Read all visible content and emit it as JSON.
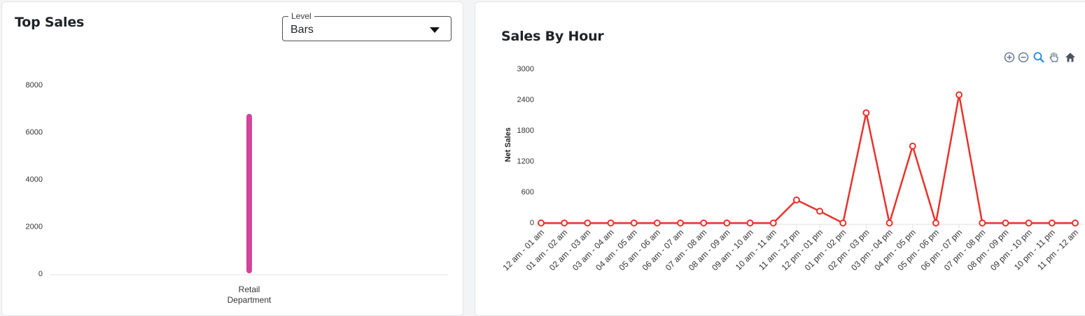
{
  "left_card": {
    "title": "Top Sales",
    "level_select": {
      "legend": "Level",
      "value": "Bars"
    }
  },
  "right_card": {
    "title": "Sales By Hour",
    "toolbar": [
      "zoom-in-icon",
      "zoom-out-icon",
      "zoom-selection-icon",
      "pan-hand-icon",
      "home-reset-icon"
    ]
  },
  "colors": {
    "bar": "#d2459a",
    "line": "#e8322c",
    "toolbar_icon": "#6e8192"
  },
  "chart_data": [
    {
      "type": "bar",
      "categories": [
        [
          "Retail",
          "Department"
        ]
      ],
      "values": [
        6760
      ],
      "xlabel": "",
      "ylabel": "",
      "ylim": [
        0,
        8000
      ],
      "yticks": [
        "0",
        "2000",
        "4000",
        "6000",
        "8000"
      ]
    },
    {
      "type": "line",
      "title": "Sales By Hour",
      "ylabel": "Net Sales",
      "xlabel": "",
      "ylim": [
        0,
        3000
      ],
      "yticks": [
        "0",
        "600",
        "1200",
        "1800",
        "2400",
        "3000"
      ],
      "categories": [
        "12 am - 01 am",
        "01 am - 02 am",
        "02 am - 03 am",
        "03 am - 04 am",
        "04 am - 05 am",
        "05 am - 06 am",
        "06 am - 07 am",
        "07 am - 08 am",
        "08 am - 09 am",
        "09 am - 10 am",
        "10 am - 11 am",
        "11 am - 12 pm",
        "12 pm - 01 pm",
        "01 pm - 02 pm",
        "02 pm - 03 pm",
        "03 pm - 04 pm",
        "04 pm - 05 pm",
        "05 pm - 06 pm",
        "06 pm - 07 pm",
        "07 pm - 08 pm",
        "08 pm - 09 pm",
        "09 pm - 10 pm",
        "10 pm - 11 pm",
        "11 pm - 12 am"
      ],
      "values": [
        0,
        0,
        0,
        0,
        0,
        0,
        0,
        0,
        0,
        0,
        0,
        450,
        230,
        0,
        2150,
        0,
        1500,
        0,
        2500,
        0,
        0,
        0,
        0,
        0
      ]
    }
  ]
}
